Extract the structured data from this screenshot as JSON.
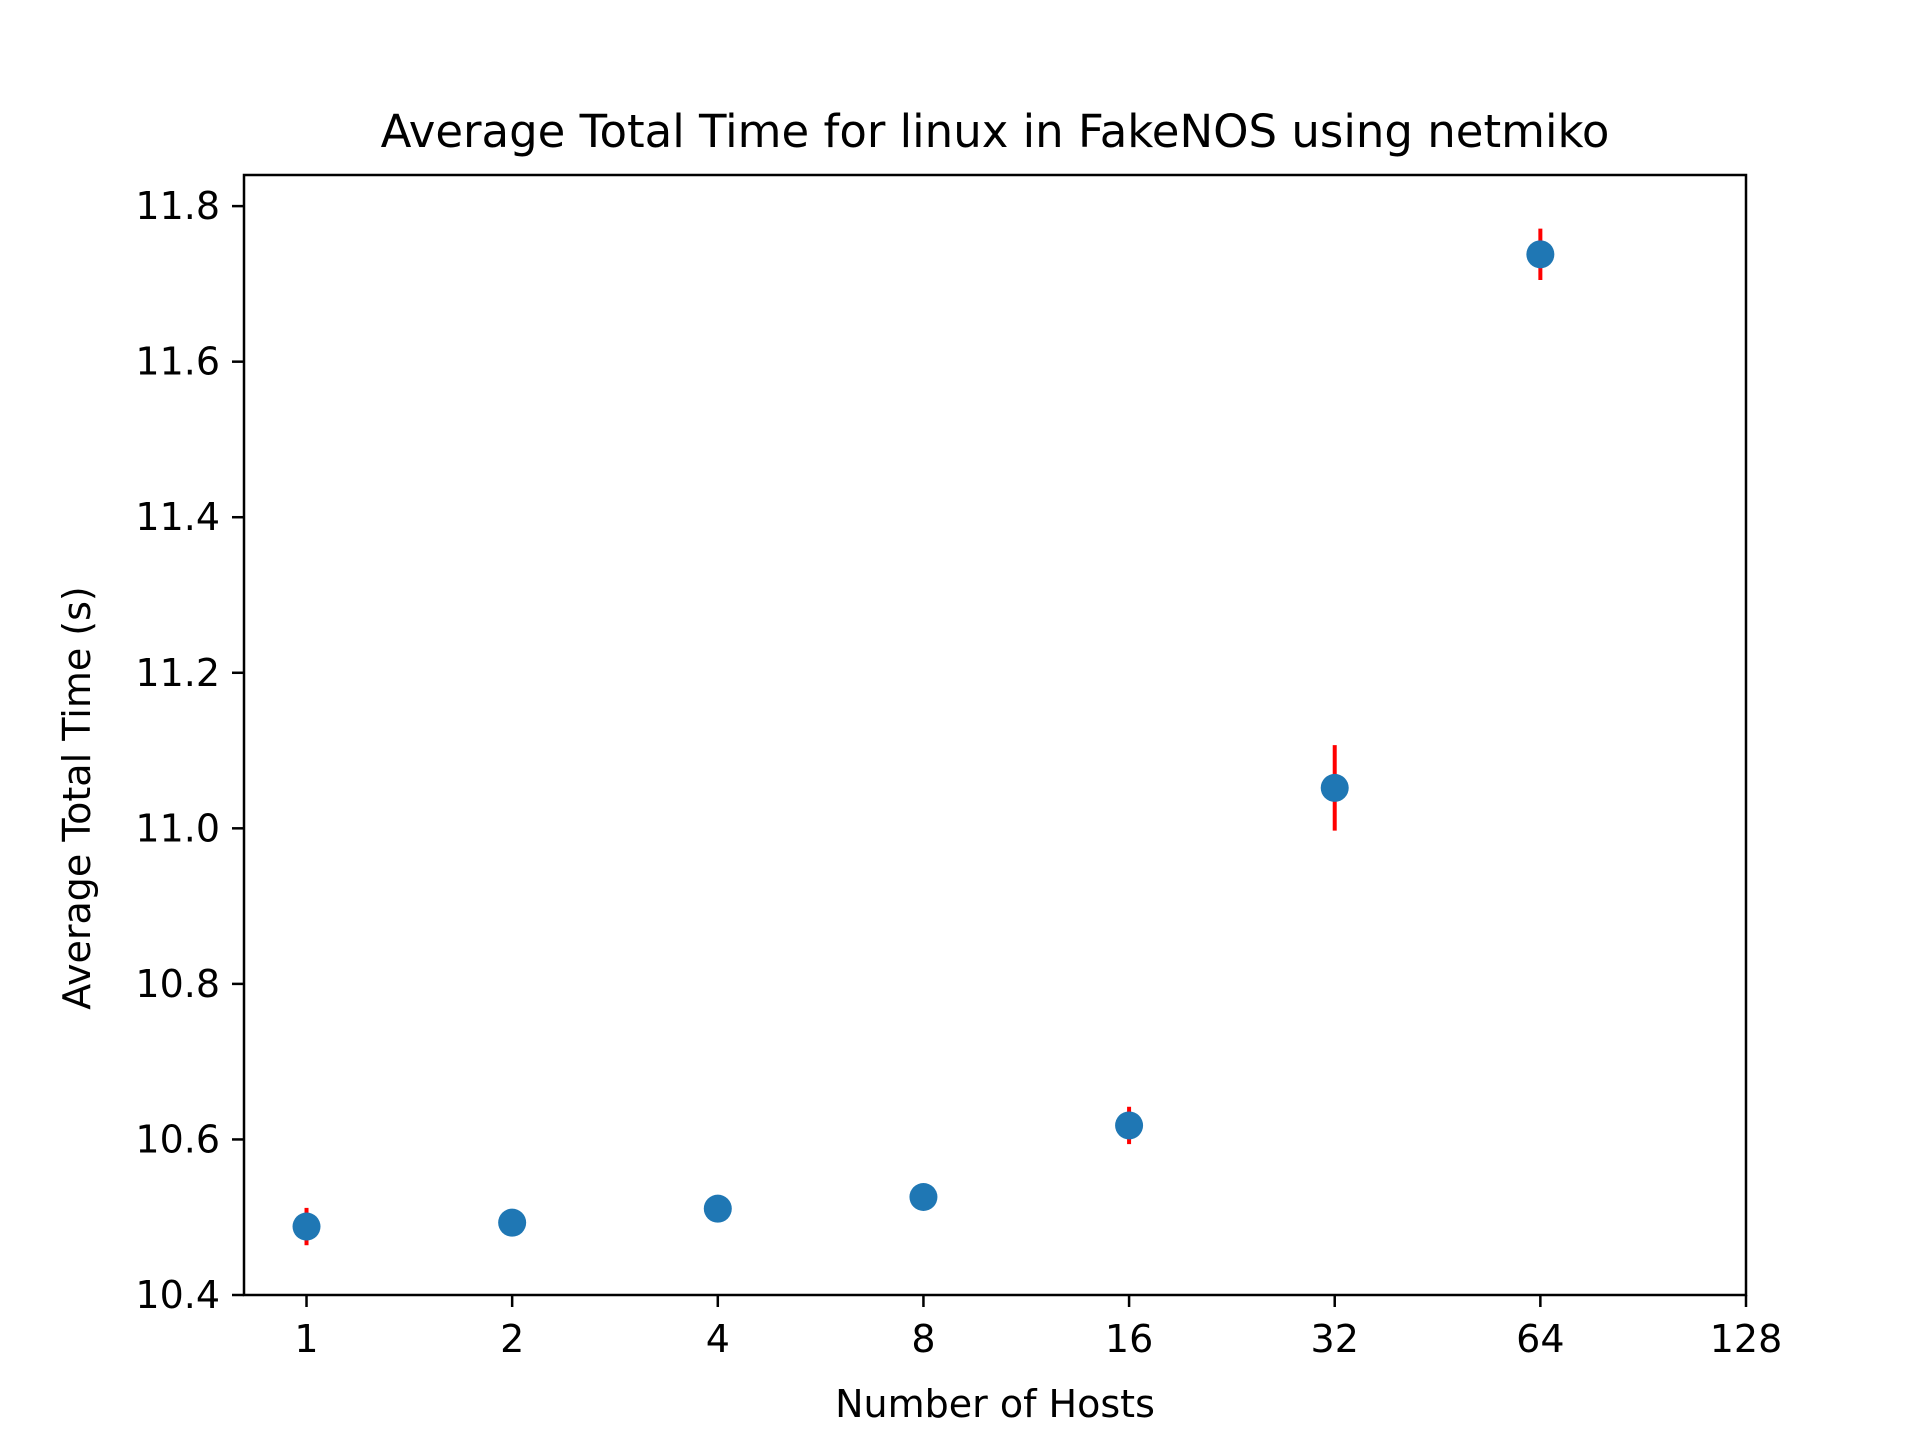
{
  "chart_data": {
    "type": "scatter",
    "title": "Average Total Time for linux in FakeNOS using netmiko",
    "xlabel": "Number of Hosts",
    "ylabel": "Average Total Time (s)",
    "x_scale": "log2",
    "x_ticks": [
      1,
      2,
      4,
      8,
      16,
      32,
      64,
      128
    ],
    "x_tick_labels": [
      "1",
      "2",
      "4",
      "8",
      "16",
      "32",
      "64",
      "128"
    ],
    "xlim": [
      0.81,
      128
    ],
    "y_ticks": [
      10.4,
      10.6,
      10.8,
      11.0,
      11.2,
      11.4,
      11.6,
      11.8
    ],
    "y_tick_labels": [
      "10.4",
      "10.6",
      "10.8",
      "11.0",
      "11.2",
      "11.4",
      "11.6",
      "11.8"
    ],
    "ylim": [
      10.4,
      11.84
    ],
    "grid": false,
    "series": [
      {
        "name": "Average Total Time",
        "color": "#1f77b4",
        "error_color": "#ff0000",
        "x": [
          1,
          2,
          4,
          8,
          16,
          32,
          64
        ],
        "y": [
          10.488,
          10.493,
          10.511,
          10.526,
          10.618,
          11.052,
          11.738
        ],
        "yerr": [
          0.024,
          0.004,
          0.006,
          0.006,
          0.024,
          0.055,
          0.033
        ]
      }
    ]
  }
}
